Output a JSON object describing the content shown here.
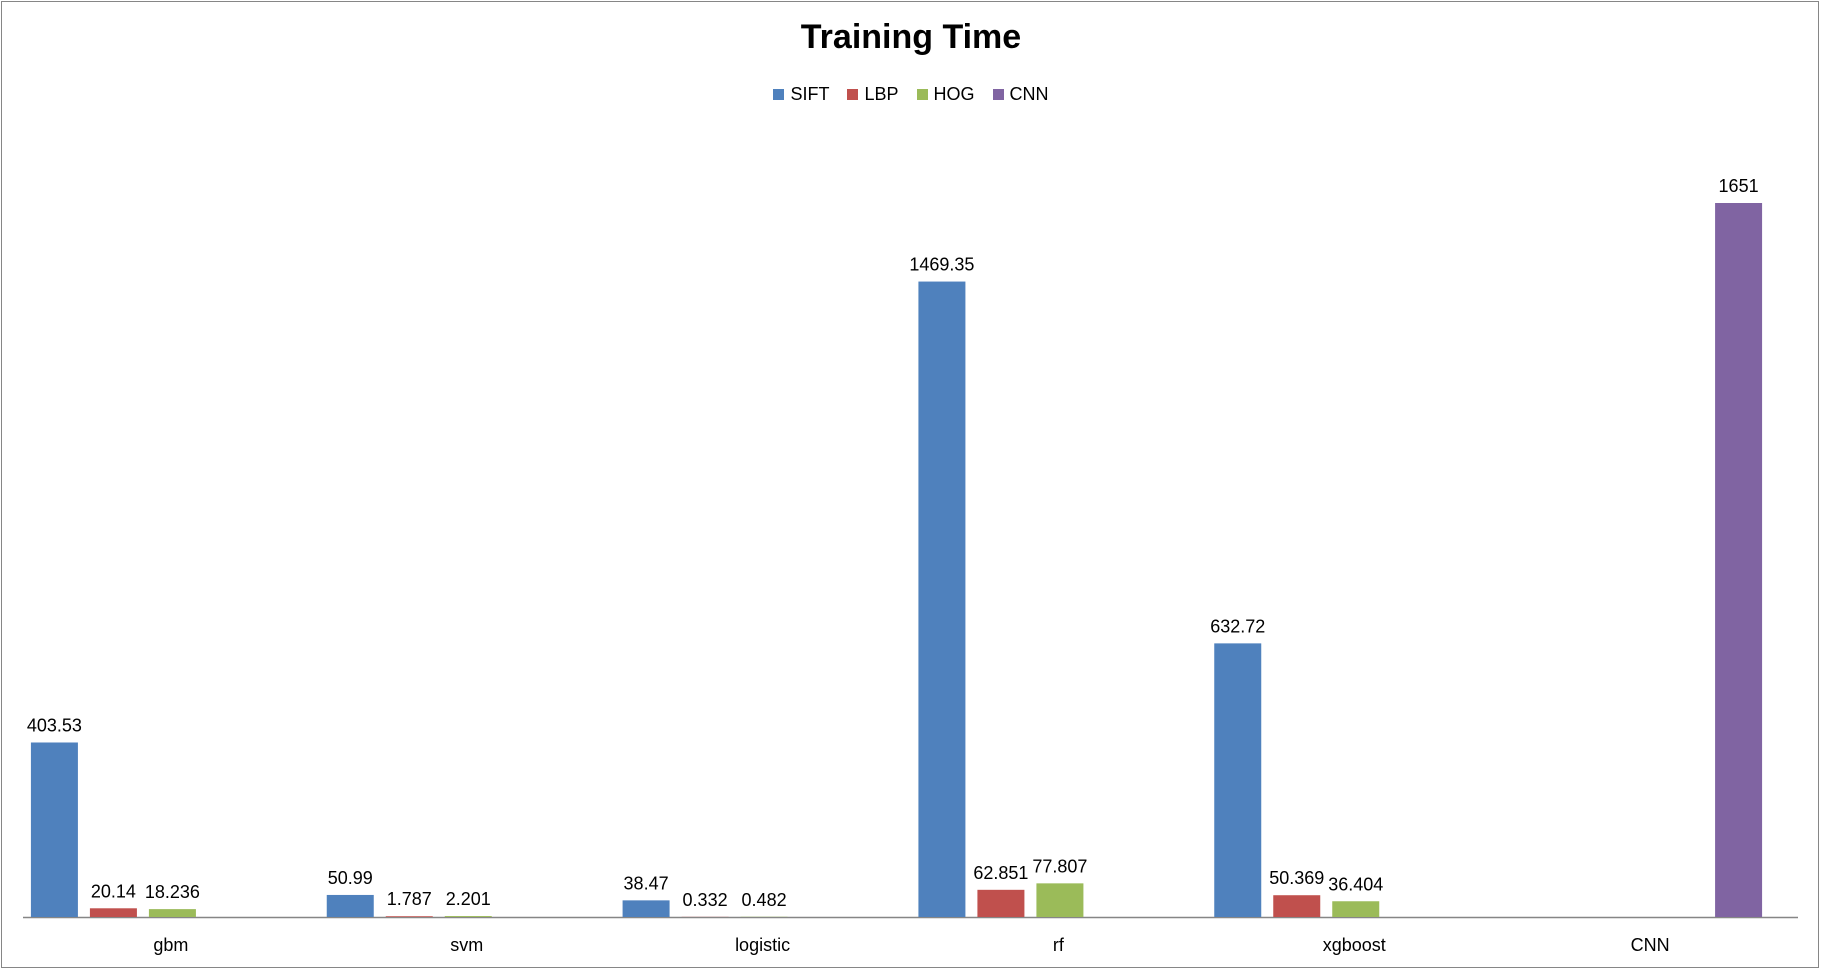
{
  "chart_data": {
    "type": "bar",
    "title": "Training Time",
    "categories": [
      "gbm",
      "svm",
      "logistic",
      "rf",
      "xgboost",
      "CNN"
    ],
    "series": [
      {
        "name": "SIFT",
        "color": "#4F81BD",
        "values": [
          403.53,
          50.99,
          38.47,
          1469.35,
          632.72,
          null
        ],
        "labels": [
          "403.53",
          "50.99",
          "38.47",
          "1469.35",
          "632.72",
          null
        ]
      },
      {
        "name": "LBP",
        "color": "#C0504D",
        "values": [
          20.14,
          1.787,
          0.332,
          62.851,
          50.369,
          null
        ],
        "labels": [
          "20.14",
          "1.787",
          "0.332",
          "62.851",
          "50.369",
          null
        ]
      },
      {
        "name": "HOG",
        "color": "#9BBB59",
        "values": [
          18.236,
          2.201,
          0.482,
          77.807,
          36.404,
          null
        ],
        "labels": [
          "18.236",
          "2.201",
          "0.482",
          "77.807",
          "36.404",
          null
        ]
      },
      {
        "name": "CNN",
        "color": "#8064A2",
        "values": [
          null,
          null,
          null,
          null,
          null,
          1651
        ],
        "labels": [
          null,
          null,
          null,
          null,
          null,
          "1651"
        ]
      }
    ],
    "ylim": [
      0,
      1900
    ],
    "grid": false,
    "legend": "top-center",
    "xlabel": "",
    "ylabel": ""
  }
}
